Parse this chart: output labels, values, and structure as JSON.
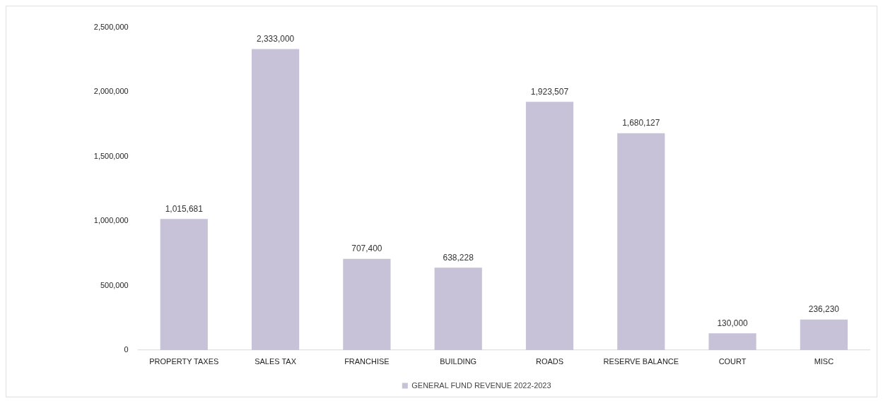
{
  "chart_data": {
    "type": "bar",
    "categories": [
      "PROPERTY TAXES",
      "SALES TAX",
      "FRANCHISE",
      "BUILDING",
      "ROADS",
      "RESERVE BALANCE",
      "COURT",
      "MISC"
    ],
    "series": [
      {
        "name": "GENERAL FUND REVENUE 2022-2023",
        "color": "#c8c2d8",
        "values": [
          1015681,
          2333000,
          707400,
          638228,
          1923507,
          1680127,
          130000,
          236230
        ],
        "value_labels": [
          "1,015,681",
          "2,333,000",
          "707,400",
          "638,228",
          "1,923,507",
          "1,680,127",
          "130,000",
          "236,230"
        ]
      }
    ],
    "ylim": [
      0,
      2500000
    ],
    "yticks": [
      0,
      {
        "value": 500000,
        "label": "500,000"
      },
      {
        "value": 1000000,
        "label": "1,000,000"
      },
      {
        "value": 1500000,
        "label": "1,500,000"
      },
      {
        "value": 2000000,
        "label": "2,000,000"
      },
      {
        "value": 2500000,
        "label": "2,500,000"
      }
    ],
    "grid": false,
    "legend": "bottom"
  }
}
